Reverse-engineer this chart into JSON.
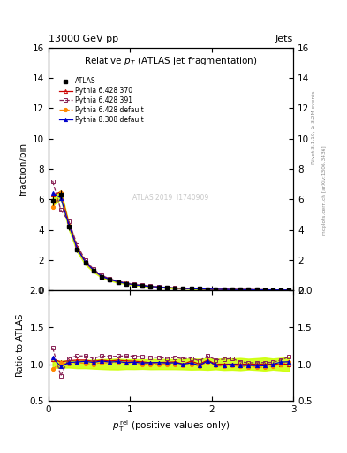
{
  "title": "Relative $p_{T}$ (ATLAS jet fragmentation)",
  "header_left": "13000 GeV pp",
  "header_right": "Jets",
  "ylabel_main": "fraction/bin",
  "ylabel_ratio": "Ratio to ATLAS",
  "xlabel": "$p_{\\textrm{T}}^{\\textrm{rel}}$ (positive values only)",
  "watermark": "ATLAS 2019  I1740909",
  "right_label": "mcplots.cern.ch [arXiv:1306.3436]",
  "right_label2": "Rivet 3.1.10, ≥ 3.2M events",
  "x": [
    0.05,
    0.15,
    0.25,
    0.35,
    0.45,
    0.55,
    0.65,
    0.75,
    0.85,
    0.95,
    1.05,
    1.15,
    1.25,
    1.35,
    1.45,
    1.55,
    1.65,
    1.75,
    1.85,
    1.95,
    2.05,
    2.15,
    2.25,
    2.35,
    2.45,
    2.55,
    2.65,
    2.75,
    2.85,
    2.95
  ],
  "atlas_y": [
    5.9,
    6.3,
    4.2,
    2.7,
    1.8,
    1.3,
    0.9,
    0.7,
    0.55,
    0.45,
    0.37,
    0.31,
    0.26,
    0.22,
    0.19,
    0.16,
    0.14,
    0.12,
    0.11,
    0.09,
    0.085,
    0.075,
    0.065,
    0.06,
    0.055,
    0.05,
    0.045,
    0.04,
    0.035,
    0.03
  ],
  "atlas_err": [
    0.3,
    0.3,
    0.2,
    0.15,
    0.1,
    0.08,
    0.06,
    0.05,
    0.04,
    0.03,
    0.025,
    0.02,
    0.018,
    0.015,
    0.013,
    0.011,
    0.01,
    0.009,
    0.008,
    0.007,
    0.006,
    0.006,
    0.005,
    0.005,
    0.004,
    0.004,
    0.004,
    0.003,
    0.003,
    0.003
  ],
  "py6_370_y": [
    6.3,
    6.5,
    4.4,
    2.85,
    1.9,
    1.35,
    0.95,
    0.73,
    0.58,
    0.47,
    0.385,
    0.32,
    0.265,
    0.225,
    0.195,
    0.165,
    0.14,
    0.125,
    0.11,
    0.095,
    0.085,
    0.075,
    0.065,
    0.06,
    0.055,
    0.05,
    0.045,
    0.04,
    0.035,
    0.03
  ],
  "py6_391_y": [
    7.2,
    5.3,
    4.55,
    3.0,
    2.0,
    1.4,
    1.0,
    0.77,
    0.61,
    0.5,
    0.41,
    0.34,
    0.285,
    0.24,
    0.205,
    0.175,
    0.15,
    0.13,
    0.115,
    0.1,
    0.09,
    0.08,
    0.07,
    0.062,
    0.056,
    0.051,
    0.046,
    0.041,
    0.037,
    0.033
  ],
  "py6_def_y": [
    5.5,
    6.4,
    4.25,
    2.75,
    1.82,
    1.3,
    0.92,
    0.71,
    0.565,
    0.46,
    0.375,
    0.31,
    0.26,
    0.22,
    0.19,
    0.16,
    0.138,
    0.12,
    0.107,
    0.093,
    0.083,
    0.073,
    0.064,
    0.058,
    0.053,
    0.048,
    0.043,
    0.039,
    0.035,
    0.031
  ],
  "py8_def_y": [
    6.4,
    6.1,
    4.3,
    2.78,
    1.87,
    1.33,
    0.94,
    0.72,
    0.57,
    0.46,
    0.38,
    0.315,
    0.265,
    0.225,
    0.193,
    0.163,
    0.14,
    0.122,
    0.108,
    0.094,
    0.084,
    0.074,
    0.065,
    0.059,
    0.054,
    0.049,
    0.044,
    0.04,
    0.036,
    0.031
  ],
  "color_atlas": "#000000",
  "color_py6_370": "#cc0000",
  "color_py6_391": "#882255",
  "color_py6_def": "#ff8800",
  "color_py8_def": "#0000cc",
  "color_band": "#ccff00",
  "ylim_main": [
    0,
    16
  ],
  "ylim_ratio": [
    0.5,
    2.0
  ],
  "xlim": [
    0,
    3.0
  ],
  "yticks_main": [
    0,
    2,
    4,
    6,
    8,
    10,
    12,
    14,
    16
  ],
  "yticks_ratio": [
    0.5,
    1.0,
    1.5,
    2.0
  ],
  "xticks": [
    0,
    1,
    2,
    3
  ]
}
